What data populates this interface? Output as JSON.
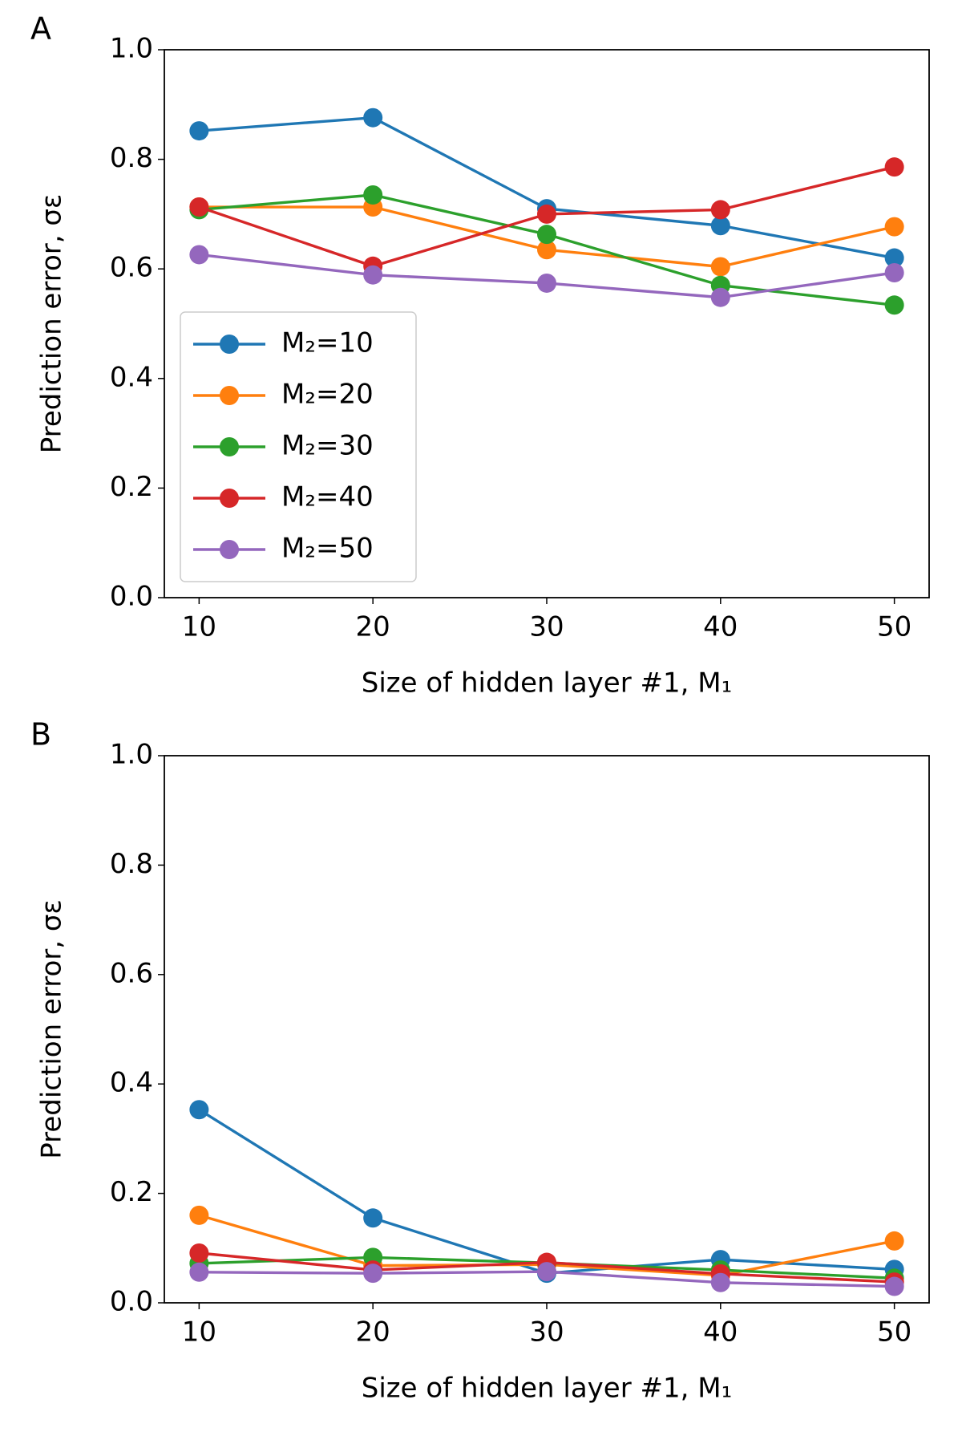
{
  "chart_data": [
    {
      "type": "line",
      "panel": "A",
      "xlabel": "Size of hidden layer #1, M₁",
      "ylabel": "Prediction error, σε",
      "x": [
        10,
        20,
        30,
        40,
        50
      ],
      "xlim": [
        8,
        52
      ],
      "xticks": [
        10,
        20,
        30,
        40,
        50
      ],
      "ylim": [
        0,
        1
      ],
      "yticks": [
        {
          "value": 0,
          "label": "0.0"
        },
        {
          "value": 0.2,
          "label": "0.2"
        },
        {
          "value": 0.4,
          "label": "0.4"
        },
        {
          "value": 0.6,
          "label": "0.6"
        },
        {
          "value": 0.8,
          "label": "0.8"
        },
        {
          "value": 1,
          "label": "1.0"
        }
      ],
      "legend": "lower left",
      "series": [
        {
          "name": "M₂=10",
          "color": "#1f77b4",
          "values": [
            0.852,
            0.876,
            0.71,
            0.679,
            0.62
          ]
        },
        {
          "name": "M₂=20",
          "color": "#ff7f0e",
          "values": [
            0.713,
            0.713,
            0.635,
            0.604,
            0.677
          ]
        },
        {
          "name": "M₂=30",
          "color": "#2ca02c",
          "values": [
            0.708,
            0.735,
            0.663,
            0.57,
            0.534
          ]
        },
        {
          "name": "M₂=40",
          "color": "#d62728",
          "values": [
            0.713,
            0.605,
            0.7,
            0.708,
            0.786
          ]
        },
        {
          "name": "M₂=50",
          "color": "#9467bd",
          "values": [
            0.626,
            0.589,
            0.574,
            0.548,
            0.593
          ]
        }
      ]
    },
    {
      "type": "line",
      "panel": "B",
      "xlabel": "Size of hidden layer #1, M₁",
      "ylabel": "Prediction error, σε",
      "x": [
        10,
        20,
        30,
        40,
        50
      ],
      "xlim": [
        8,
        52
      ],
      "xticks": [
        10,
        20,
        30,
        40,
        50
      ],
      "ylim": [
        0,
        1
      ],
      "yticks": [
        {
          "value": 0,
          "label": "0.0"
        },
        {
          "value": 0.2,
          "label": "0.2"
        },
        {
          "value": 0.4,
          "label": "0.4"
        },
        {
          "value": 0.6,
          "label": "0.6"
        },
        {
          "value": 0.8,
          "label": "0.8"
        },
        {
          "value": 1,
          "label": "1.0"
        }
      ],
      "series": [
        {
          "color": "#1f77b4",
          "values": [
            0.353,
            0.155,
            0.054,
            0.079,
            0.061
          ]
        },
        {
          "color": "#ff7f0e",
          "values": [
            0.16,
            0.068,
            0.07,
            0.05,
            0.113
          ]
        },
        {
          "color": "#2ca02c",
          "values": [
            0.072,
            0.083,
            0.073,
            0.06,
            0.045
          ]
        },
        {
          "color": "#d62728",
          "values": [
            0.091,
            0.06,
            0.074,
            0.053,
            0.038
          ]
        },
        {
          "color": "#9467bd",
          "values": [
            0.056,
            0.054,
            0.057,
            0.037,
            0.03
          ]
        }
      ]
    }
  ]
}
